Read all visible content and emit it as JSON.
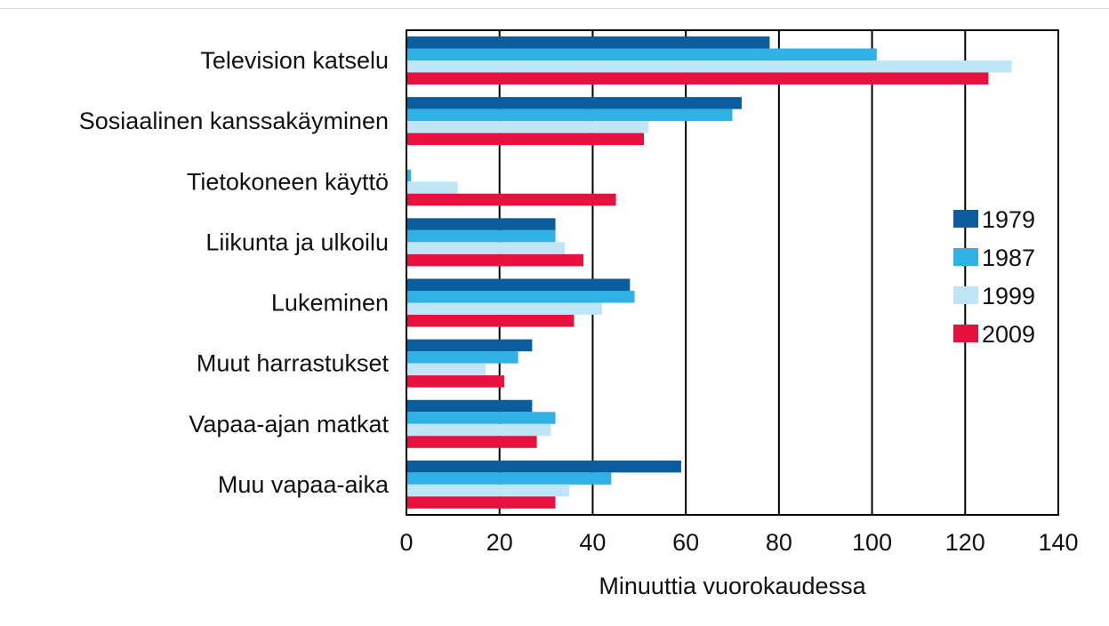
{
  "chart_data": {
    "type": "bar",
    "orientation": "horizontal",
    "title": "",
    "xlabel": "Minuuttia vuorokaudessa",
    "ylabel": "",
    "xlim": [
      0,
      140
    ],
    "xticks": [
      0,
      20,
      40,
      60,
      80,
      100,
      120,
      140
    ],
    "xtick_labels": [
      "0",
      "20",
      "40",
      "60",
      "80",
      "100",
      "120",
      "140"
    ],
    "grid": "vertical",
    "legend_position": "right",
    "categories": [
      "Television katselu",
      "Sosiaalinen kanssakäyminen",
      "Tietokoneen käyttö",
      "Liikunta ja ulkoilu",
      "Lukeminen",
      "Muut harrastukset",
      "Vapaa-ajan matkat",
      "Muu vapaa-aika"
    ],
    "series": [
      {
        "name": "1979",
        "color": "#0a5e9e",
        "values": [
          78,
          72,
          0,
          32,
          48,
          27,
          27,
          59
        ]
      },
      {
        "name": "1987",
        "color": "#2fb1e6",
        "values": [
          101,
          70,
          1,
          32,
          49,
          24,
          32,
          44
        ]
      },
      {
        "name": "1999",
        "color": "#bfe6f7",
        "values": [
          130,
          52,
          11,
          34,
          42,
          17,
          31,
          35
        ]
      },
      {
        "name": "2009",
        "color": "#e8103c",
        "values": [
          125,
          51,
          45,
          38,
          36,
          21,
          28,
          32
        ]
      }
    ]
  }
}
